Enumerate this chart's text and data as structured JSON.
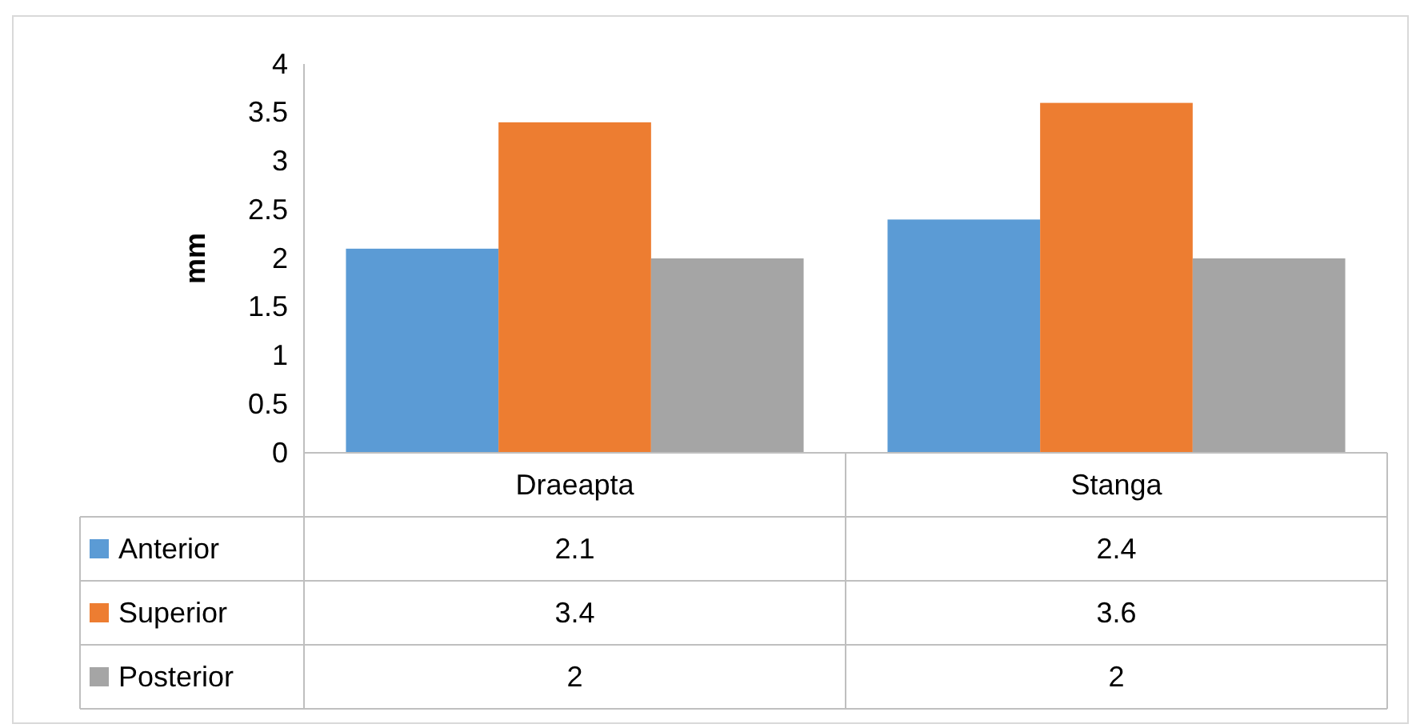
{
  "chart_data": {
    "type": "bar",
    "ylabel": "mm",
    "categories": [
      "Draeapta",
      "Stanga"
    ],
    "series": [
      {
        "name": "Anterior",
        "color": "#5b9bd5",
        "values": [
          2.1,
          2.4
        ]
      },
      {
        "name": "Superior",
        "color": "#ed7d31",
        "values": [
          3.4,
          3.6
        ]
      },
      {
        "name": "Posterior",
        "color": "#a5a5a5",
        "values": [
          2,
          2
        ]
      }
    ],
    "ylim": [
      0,
      4
    ],
    "yticks": [
      0,
      0.5,
      1,
      1.5,
      2,
      2.5,
      3,
      3.5,
      4
    ],
    "grid": false,
    "legend": "bottom left",
    "data_labels": true
  }
}
